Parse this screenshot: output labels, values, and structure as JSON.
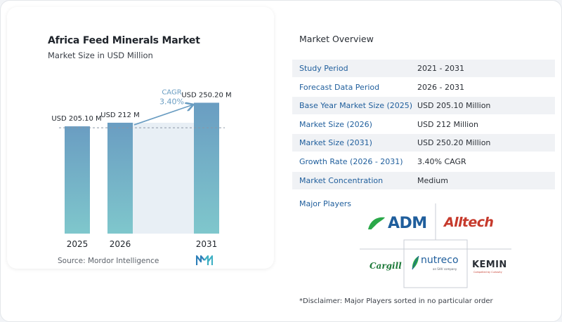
{
  "chart_data": {
    "type": "bar",
    "title": "Africa Feed Minerals Market",
    "subtitle": "Market Size in USD Million",
    "categories": [
      "2025",
      "2026",
      "2031"
    ],
    "values": [
      205.1,
      212,
      250.2
    ],
    "data_labels": [
      "USD 205.10 M",
      "USD 212 M",
      "USD 250.20 M"
    ],
    "cagr_label": "CAGR",
    "cagr_value": "3.40%",
    "grid": false,
    "colors": {
      "bar_top": "#6a9dc2",
      "bar_bottom": "#7fc7cc",
      "highlight_band": "#e8eff5",
      "arrow": "#6a9dc2",
      "dashed": "#8a97a6"
    }
  },
  "source": "Source:  Mordor Intelligence",
  "source_logo": "mordor-intelligence-logo",
  "overview": {
    "title": "Market Overview",
    "rows": [
      {
        "label": "Study Period",
        "value": "2021 - 2031"
      },
      {
        "label": "Forecast Data Period",
        "value": "2026 - 2031"
      },
      {
        "label": "Base Year Market Size (2025)",
        "value": "USD 205.10 Million"
      },
      {
        "label": "Market Size (2026)",
        "value": "USD 212 Million"
      },
      {
        "label": "Market Size (2031)",
        "value": "USD 250.20 Million"
      },
      {
        "label": "Growth Rate (2026 - 2031)",
        "value": "3.40% CAGR"
      },
      {
        "label": "Market Concentration",
        "value": "Medium"
      }
    ],
    "players_label": "Major Players",
    "players": [
      {
        "name": "ADM",
        "icon": "adm-logo",
        "color": "#2aa849"
      },
      {
        "name": "Alltech",
        "icon": "alltech-logo",
        "color": "#c63a2c"
      },
      {
        "name": "Cargill",
        "icon": "cargill-logo",
        "color": "#1e7a3a"
      },
      {
        "name": "nutreco",
        "tagline": "an SHV company",
        "icon": "nutreco-logo",
        "color": "#1f5e9c"
      },
      {
        "name": "KEMIN",
        "tagline": "Compelled by Curiosity",
        "icon": "kemin-logo",
        "color": "#c63a2c"
      }
    ],
    "disclaimer": "*Disclaimer: Major Players sorted in no particular order"
  }
}
